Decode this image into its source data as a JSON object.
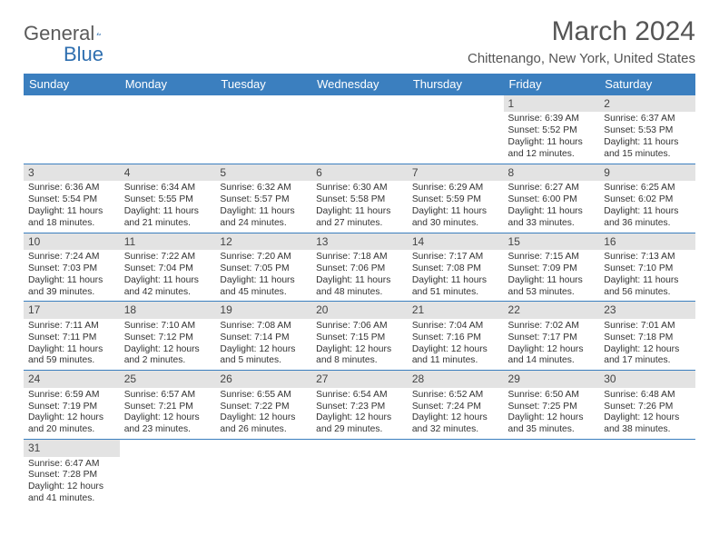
{
  "logo": {
    "text1": "General",
    "text2": "Blue"
  },
  "title": "March 2024",
  "location": "Chittenango, New York, United States",
  "colors": {
    "header_bg": "#3b7fbf",
    "header_text": "#ffffff",
    "daynum_bg": "#e3e3e3",
    "row_border": "#3b7fbf",
    "logo_accent": "#2f6fb0",
    "text": "#333333",
    "title_text": "#555555"
  },
  "typography": {
    "title_fontsize": 30,
    "location_fontsize": 15,
    "dayheader_fontsize": 13,
    "daynum_fontsize": 12,
    "body_fontsize": 10.3
  },
  "structure_type": "calendar-table",
  "day_headers": [
    "Sunday",
    "Monday",
    "Tuesday",
    "Wednesday",
    "Thursday",
    "Friday",
    "Saturday"
  ],
  "weeks": [
    [
      null,
      null,
      null,
      null,
      null,
      {
        "n": "1",
        "sunrise": "Sunrise: 6:39 AM",
        "sunset": "Sunset: 5:52 PM",
        "daylight": "Daylight: 11 hours and 12 minutes."
      },
      {
        "n": "2",
        "sunrise": "Sunrise: 6:37 AM",
        "sunset": "Sunset: 5:53 PM",
        "daylight": "Daylight: 11 hours and 15 minutes."
      }
    ],
    [
      {
        "n": "3",
        "sunrise": "Sunrise: 6:36 AM",
        "sunset": "Sunset: 5:54 PM",
        "daylight": "Daylight: 11 hours and 18 minutes."
      },
      {
        "n": "4",
        "sunrise": "Sunrise: 6:34 AM",
        "sunset": "Sunset: 5:55 PM",
        "daylight": "Daylight: 11 hours and 21 minutes."
      },
      {
        "n": "5",
        "sunrise": "Sunrise: 6:32 AM",
        "sunset": "Sunset: 5:57 PM",
        "daylight": "Daylight: 11 hours and 24 minutes."
      },
      {
        "n": "6",
        "sunrise": "Sunrise: 6:30 AM",
        "sunset": "Sunset: 5:58 PM",
        "daylight": "Daylight: 11 hours and 27 minutes."
      },
      {
        "n": "7",
        "sunrise": "Sunrise: 6:29 AM",
        "sunset": "Sunset: 5:59 PM",
        "daylight": "Daylight: 11 hours and 30 minutes."
      },
      {
        "n": "8",
        "sunrise": "Sunrise: 6:27 AM",
        "sunset": "Sunset: 6:00 PM",
        "daylight": "Daylight: 11 hours and 33 minutes."
      },
      {
        "n": "9",
        "sunrise": "Sunrise: 6:25 AM",
        "sunset": "Sunset: 6:02 PM",
        "daylight": "Daylight: 11 hours and 36 minutes."
      }
    ],
    [
      {
        "n": "10",
        "sunrise": "Sunrise: 7:24 AM",
        "sunset": "Sunset: 7:03 PM",
        "daylight": "Daylight: 11 hours and 39 minutes."
      },
      {
        "n": "11",
        "sunrise": "Sunrise: 7:22 AM",
        "sunset": "Sunset: 7:04 PM",
        "daylight": "Daylight: 11 hours and 42 minutes."
      },
      {
        "n": "12",
        "sunrise": "Sunrise: 7:20 AM",
        "sunset": "Sunset: 7:05 PM",
        "daylight": "Daylight: 11 hours and 45 minutes."
      },
      {
        "n": "13",
        "sunrise": "Sunrise: 7:18 AM",
        "sunset": "Sunset: 7:06 PM",
        "daylight": "Daylight: 11 hours and 48 minutes."
      },
      {
        "n": "14",
        "sunrise": "Sunrise: 7:17 AM",
        "sunset": "Sunset: 7:08 PM",
        "daylight": "Daylight: 11 hours and 51 minutes."
      },
      {
        "n": "15",
        "sunrise": "Sunrise: 7:15 AM",
        "sunset": "Sunset: 7:09 PM",
        "daylight": "Daylight: 11 hours and 53 minutes."
      },
      {
        "n": "16",
        "sunrise": "Sunrise: 7:13 AM",
        "sunset": "Sunset: 7:10 PM",
        "daylight": "Daylight: 11 hours and 56 minutes."
      }
    ],
    [
      {
        "n": "17",
        "sunrise": "Sunrise: 7:11 AM",
        "sunset": "Sunset: 7:11 PM",
        "daylight": "Daylight: 11 hours and 59 minutes."
      },
      {
        "n": "18",
        "sunrise": "Sunrise: 7:10 AM",
        "sunset": "Sunset: 7:12 PM",
        "daylight": "Daylight: 12 hours and 2 minutes."
      },
      {
        "n": "19",
        "sunrise": "Sunrise: 7:08 AM",
        "sunset": "Sunset: 7:14 PM",
        "daylight": "Daylight: 12 hours and 5 minutes."
      },
      {
        "n": "20",
        "sunrise": "Sunrise: 7:06 AM",
        "sunset": "Sunset: 7:15 PM",
        "daylight": "Daylight: 12 hours and 8 minutes."
      },
      {
        "n": "21",
        "sunrise": "Sunrise: 7:04 AM",
        "sunset": "Sunset: 7:16 PM",
        "daylight": "Daylight: 12 hours and 11 minutes."
      },
      {
        "n": "22",
        "sunrise": "Sunrise: 7:02 AM",
        "sunset": "Sunset: 7:17 PM",
        "daylight": "Daylight: 12 hours and 14 minutes."
      },
      {
        "n": "23",
        "sunrise": "Sunrise: 7:01 AM",
        "sunset": "Sunset: 7:18 PM",
        "daylight": "Daylight: 12 hours and 17 minutes."
      }
    ],
    [
      {
        "n": "24",
        "sunrise": "Sunrise: 6:59 AM",
        "sunset": "Sunset: 7:19 PM",
        "daylight": "Daylight: 12 hours and 20 minutes."
      },
      {
        "n": "25",
        "sunrise": "Sunrise: 6:57 AM",
        "sunset": "Sunset: 7:21 PM",
        "daylight": "Daylight: 12 hours and 23 minutes."
      },
      {
        "n": "26",
        "sunrise": "Sunrise: 6:55 AM",
        "sunset": "Sunset: 7:22 PM",
        "daylight": "Daylight: 12 hours and 26 minutes."
      },
      {
        "n": "27",
        "sunrise": "Sunrise: 6:54 AM",
        "sunset": "Sunset: 7:23 PM",
        "daylight": "Daylight: 12 hours and 29 minutes."
      },
      {
        "n": "28",
        "sunrise": "Sunrise: 6:52 AM",
        "sunset": "Sunset: 7:24 PM",
        "daylight": "Daylight: 12 hours and 32 minutes."
      },
      {
        "n": "29",
        "sunrise": "Sunrise: 6:50 AM",
        "sunset": "Sunset: 7:25 PM",
        "daylight": "Daylight: 12 hours and 35 minutes."
      },
      {
        "n": "30",
        "sunrise": "Sunrise: 6:48 AM",
        "sunset": "Sunset: 7:26 PM",
        "daylight": "Daylight: 12 hours and 38 minutes."
      }
    ],
    [
      {
        "n": "31",
        "sunrise": "Sunrise: 6:47 AM",
        "sunset": "Sunset: 7:28 PM",
        "daylight": "Daylight: 12 hours and 41 minutes."
      },
      null,
      null,
      null,
      null,
      null,
      null
    ]
  ]
}
